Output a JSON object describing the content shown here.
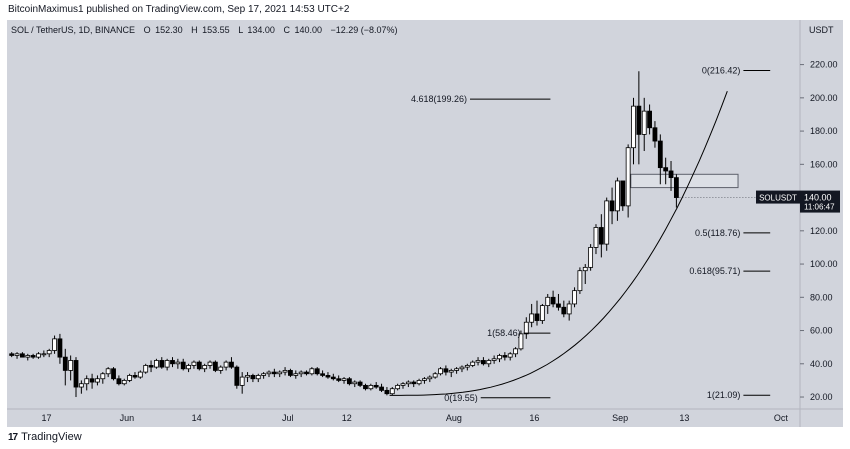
{
  "header": {
    "publisher_line": "BitcoinMaximus1 published on TradingView.com, Sep 17, 2021 14:53 UTC+2"
  },
  "footer": {
    "logo_glyph": "17",
    "brand": "TradingView"
  },
  "colors": {
    "background": "#d1d4dc",
    "candle_up": "#ffffff",
    "candle_down": "#000000",
    "line": "#000000",
    "price_tag": "#131722",
    "text": "#131722"
  },
  "chart_data": {
    "type": "candlestick",
    "symbol_line": {
      "symbol": "SOL / TetherUS, 1D, BINANCE",
      "open_label": "O",
      "open": "152.30",
      "high_label": "H",
      "high": "153.55",
      "low_label": "L",
      "low": "134.00",
      "close_label": "C",
      "close": "140.00",
      "change": "−12.29 (−8.07%)"
    },
    "currency": "USDT",
    "ylim": [
      14,
      236
    ],
    "y_ticks": [
      "20.00",
      "40.00",
      "60.00",
      "80.00",
      "100.00",
      "120.00",
      "140.00",
      "160.00",
      "180.00",
      "200.00",
      "220.00"
    ],
    "y_tick_values": [
      20,
      40,
      60,
      80,
      100,
      120,
      140,
      160,
      180,
      200,
      220
    ],
    "x_start_date": "2021-05-10",
    "x_range_days": [
      0,
      147
    ],
    "x_ticks": [
      {
        "label": "17",
        "day": 7
      },
      {
        "label": "Jun",
        "day": 22
      },
      {
        "label": "14",
        "day": 35
      },
      {
        "label": "Jul",
        "day": 52
      },
      {
        "label": "12",
        "day": 63
      },
      {
        "label": "Aug",
        "day": 83
      },
      {
        "label": "16",
        "day": 98
      },
      {
        "label": "Sep",
        "day": 114
      },
      {
        "label": "13",
        "day": 126
      },
      {
        "label": "Oct",
        "day": 144
      }
    ],
    "current_price": {
      "symbol": "SOLUSDT",
      "price": "140.00",
      "countdown": "11:06:47",
      "value": 140
    },
    "fib_levels": [
      {
        "label": "0(216.42)",
        "value": 216.42,
        "day_start": 137,
        "day_end": 142
      },
      {
        "label": "4.618(199.26)",
        "value": 199.26,
        "day_start": 86,
        "day_end": 101
      },
      {
        "label": "0.5(118.76)",
        "value": 118.76,
        "day_start": 137,
        "day_end": 142
      },
      {
        "label": "0.618(95.71)",
        "value": 95.71,
        "day_start": 137,
        "day_end": 142
      },
      {
        "label": "1(58.46)",
        "value": 58.46,
        "day_start": 96,
        "day_end": 101
      },
      {
        "label": "0(19.55)",
        "value": 19.55,
        "day_start": 88,
        "day_end": 101
      },
      {
        "label": "1(21.09)",
        "value": 21.09,
        "day_start": 137,
        "day_end": 142
      }
    ],
    "resistance_box": {
      "day_start": 116,
      "day_end": 136,
      "y_low": 146,
      "y_high": 154
    },
    "parabolic_curve": {
      "day_start": 71,
      "day_end": 134,
      "y_start": 21,
      "y_end": 204,
      "exponent": 3
    },
    "candles": [
      [
        46,
        47,
        44,
        45
      ],
      [
        45,
        47,
        43,
        46
      ],
      [
        46,
        47,
        44,
        44
      ],
      [
        44,
        46,
        42,
        45
      ],
      [
        45,
        46,
        43,
        44
      ],
      [
        44,
        47,
        43,
        46
      ],
      [
        46,
        48,
        44,
        46
      ],
      [
        46,
        49,
        44,
        48
      ],
      [
        48,
        57,
        46,
        55
      ],
      [
        55,
        58,
        40,
        44
      ],
      [
        44,
        49,
        27,
        36
      ],
      [
        36,
        45,
        30,
        42
      ],
      [
        42,
        44,
        20,
        26
      ],
      [
        26,
        30,
        22,
        28
      ],
      [
        28,
        33,
        24,
        31
      ],
      [
        31,
        34,
        25,
        29
      ],
      [
        29,
        33,
        27,
        31
      ],
      [
        31,
        35,
        28,
        34
      ],
      [
        34,
        38,
        32,
        37
      ],
      [
        37,
        38,
        30,
        31
      ],
      [
        31,
        33,
        27,
        28
      ],
      [
        28,
        31,
        27,
        30
      ],
      [
        30,
        34,
        29,
        33
      ],
      [
        33,
        35,
        31,
        32
      ],
      [
        32,
        36,
        31,
        35
      ],
      [
        35,
        40,
        34,
        39
      ],
      [
        39,
        42,
        35,
        38
      ],
      [
        38,
        43,
        37,
        42
      ],
      [
        42,
        44,
        37,
        38
      ],
      [
        38,
        43,
        36,
        42
      ],
      [
        42,
        44,
        38,
        40
      ],
      [
        40,
        43,
        37,
        41
      ],
      [
        41,
        43,
        36,
        37
      ],
      [
        37,
        40,
        35,
        39
      ],
      [
        39,
        42,
        37,
        41
      ],
      [
        41,
        42,
        36,
        37
      ],
      [
        37,
        40,
        35,
        39
      ],
      [
        39,
        42,
        37,
        41
      ],
      [
        41,
        42,
        35,
        36
      ],
      [
        36,
        39,
        34,
        38
      ],
      [
        38,
        42,
        36,
        41
      ],
      [
        41,
        44,
        37,
        38
      ],
      [
        38,
        39,
        25,
        27
      ],
      [
        27,
        35,
        22,
        32
      ],
      [
        32,
        35,
        29,
        33
      ],
      [
        33,
        34,
        29,
        31
      ],
      [
        31,
        34,
        29,
        33
      ],
      [
        33,
        35,
        31,
        34
      ],
      [
        34,
        36,
        32,
        35
      ],
      [
        35,
        37,
        32,
        34
      ],
      [
        34,
        36,
        32,
        35
      ],
      [
        35,
        38,
        33,
        36
      ],
      [
        36,
        37,
        32,
        33
      ],
      [
        33,
        36,
        31,
        34
      ],
      [
        34,
        36,
        32,
        35
      ],
      [
        35,
        36,
        33,
        34
      ],
      [
        34,
        38,
        33,
        37
      ],
      [
        37,
        38,
        33,
        34
      ],
      [
        34,
        36,
        32,
        33
      ],
      [
        33,
        35,
        31,
        32
      ],
      [
        32,
        34,
        30,
        31
      ],
      [
        31,
        33,
        29,
        30
      ],
      [
        30,
        32,
        28,
        31
      ],
      [
        31,
        32,
        27,
        28
      ],
      [
        28,
        30,
        26,
        29
      ],
      [
        29,
        30,
        26,
        27
      ],
      [
        27,
        28,
        24,
        25
      ],
      [
        25,
        28,
        24,
        27
      ],
      [
        27,
        29,
        25,
        26
      ],
      [
        26,
        28,
        23,
        24
      ],
      [
        24,
        26,
        21,
        22
      ],
      [
        22,
        26,
        21,
        25
      ],
      [
        25,
        28,
        24,
        27
      ],
      [
        27,
        29,
        25,
        28
      ],
      [
        28,
        30,
        26,
        29
      ],
      [
        29,
        30,
        26,
        28
      ],
      [
        28,
        31,
        27,
        30
      ],
      [
        30,
        32,
        28,
        31
      ],
      [
        31,
        33,
        29,
        32
      ],
      [
        32,
        35,
        31,
        34
      ],
      [
        34,
        38,
        33,
        37
      ],
      [
        37,
        39,
        33,
        35
      ],
      [
        35,
        37,
        32,
        36
      ],
      [
        36,
        38,
        34,
        37
      ],
      [
        37,
        39,
        35,
        38
      ],
      [
        38,
        40,
        36,
        39
      ],
      [
        39,
        42,
        38,
        41
      ],
      [
        41,
        44,
        39,
        42
      ],
      [
        42,
        44,
        39,
        40
      ],
      [
        40,
        43,
        38,
        42
      ],
      [
        42,
        45,
        40,
        43
      ],
      [
        43,
        46,
        41,
        45
      ],
      [
        45,
        47,
        42,
        44
      ],
      [
        44,
        47,
        42,
        46
      ],
      [
        46,
        50,
        44,
        49
      ],
      [
        49,
        60,
        48,
        58
      ],
      [
        58,
        68,
        55,
        65
      ],
      [
        65,
        76,
        62,
        70
      ],
      [
        70,
        78,
        63,
        66
      ],
      [
        66,
        76,
        64,
        75
      ],
      [
        75,
        82,
        70,
        80
      ],
      [
        80,
        84,
        74,
        76
      ],
      [
        76,
        82,
        72,
        74
      ],
      [
        74,
        78,
        68,
        70
      ],
      [
        70,
        78,
        66,
        76
      ],
      [
        76,
        86,
        74,
        84
      ],
      [
        84,
        98,
        82,
        96
      ],
      [
        96,
        100,
        88,
        98
      ],
      [
        98,
        112,
        96,
        110
      ],
      [
        110,
        124,
        106,
        122
      ],
      [
        122,
        130,
        104,
        112
      ],
      [
        112,
        140,
        108,
        138
      ],
      [
        138,
        146,
        124,
        132
      ],
      [
        132,
        152,
        126,
        150
      ],
      [
        150,
        148,
        132,
        135
      ],
      [
        135,
        172,
        128,
        170
      ],
      [
        170,
        200,
        160,
        195
      ],
      [
        195,
        216,
        160,
        178
      ],
      [
        178,
        200,
        168,
        192
      ],
      [
        192,
        196,
        178,
        182
      ],
      [
        182,
        186,
        170,
        174
      ],
      [
        174,
        178,
        148,
        158
      ],
      [
        158,
        164,
        148,
        156
      ],
      [
        156,
        162,
        144,
        152
      ],
      [
        152,
        154,
        134,
        140
      ]
    ]
  }
}
